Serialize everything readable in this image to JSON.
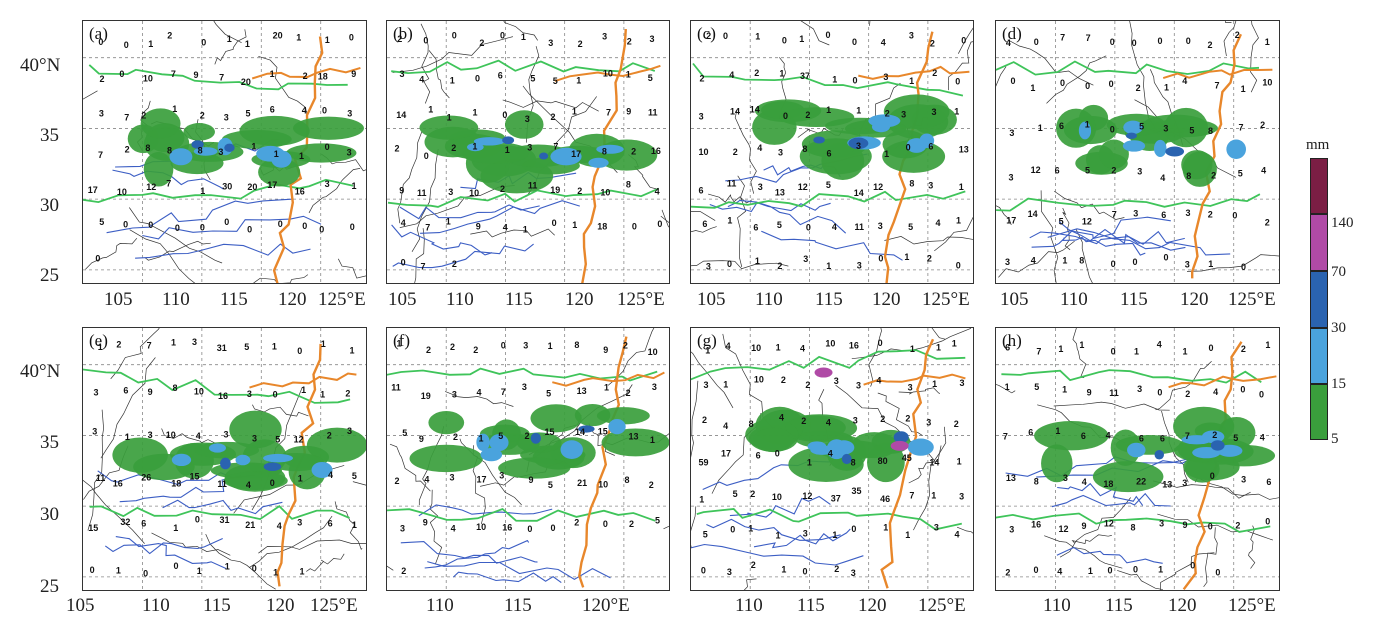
{
  "panels": [
    {
      "label": "(a)",
      "stations": [
        "0",
        "0",
        "1",
        "2",
        "0",
        "1",
        "1",
        "20",
        "1",
        "1",
        "0",
        "2",
        "0",
        "10",
        "7",
        "9",
        "7",
        "20",
        "1",
        "2",
        "18",
        "9",
        "3",
        "7",
        "2",
        "1",
        "2",
        "3",
        "5",
        "6",
        "4",
        "0",
        "3",
        "7",
        "2",
        "8",
        "8",
        "8",
        "3",
        "1",
        "1",
        "1",
        "0",
        "3",
        "17",
        "10",
        "12",
        "7",
        "1",
        "30",
        "20",
        "17",
        "16",
        "3",
        "1",
        "5",
        "0",
        "0",
        "0",
        "0",
        "0",
        "0",
        "0",
        "0",
        "0",
        "0",
        "0"
      ]
    },
    {
      "label": "(b)",
      "stations": [
        "2",
        "0",
        "0",
        "2",
        "0",
        "1",
        "3",
        "2",
        "3",
        "2",
        "3",
        "3",
        "4",
        "1",
        "0",
        "6",
        "5",
        "5",
        "1",
        "10",
        "1",
        "5",
        "14",
        "1",
        "1",
        "1",
        "0",
        "3",
        "2",
        "1",
        "7",
        "9",
        "11",
        "2",
        "0",
        "2",
        "1",
        "1",
        "3",
        "7",
        "17",
        "8",
        "2",
        "16",
        "9",
        "11",
        "3",
        "10",
        "2",
        "11",
        "19",
        "2",
        "10",
        "8",
        "4",
        "4",
        "7",
        "1",
        "9",
        "4",
        "1",
        "0",
        "1",
        "18",
        "0",
        "0",
        "0",
        "7",
        "2"
      ]
    },
    {
      "label": "(c)",
      "stations": [
        "2",
        "0",
        "1",
        "0",
        "1",
        "0",
        "0",
        "4",
        "3",
        "2",
        "0",
        "2",
        "4",
        "2",
        "1",
        "37",
        "1",
        "0",
        "3",
        "1",
        "2",
        "0",
        "3",
        "14",
        "14",
        "0",
        "2",
        "1",
        "1",
        "2",
        "3",
        "3",
        "1",
        "10",
        "2",
        "4",
        "3",
        "8",
        "6",
        "3",
        "1",
        "0",
        "6",
        "13",
        "6",
        "11",
        "3",
        "13",
        "12",
        "5",
        "14",
        "12",
        "8",
        "3",
        "1",
        "6",
        "1",
        "6",
        "5",
        "0",
        "4",
        "11",
        "3",
        "5",
        "4",
        "1",
        "3",
        "0",
        "1",
        "2",
        "3",
        "1",
        "3",
        "0",
        "1",
        "2",
        "0"
      ]
    },
    {
      "label": "(d)",
      "stations": [
        "4",
        "0",
        "7",
        "7",
        "0",
        "0",
        "0",
        "0",
        "2",
        "2",
        "1",
        "0",
        "1",
        "0",
        "0",
        "0",
        "2",
        "1",
        "4",
        "7",
        "1",
        "10",
        "3",
        "1",
        "6",
        "1",
        "0",
        "5",
        "3",
        "5",
        "8",
        "7",
        "2",
        "3",
        "12",
        "6",
        "5",
        "2",
        "3",
        "4",
        "8",
        "2",
        "5",
        "4",
        "17",
        "14",
        "5",
        "12",
        "7",
        "3",
        "6",
        "3",
        "2",
        "0",
        "2",
        "3",
        "4",
        "1",
        "8",
        "0",
        "0",
        "0",
        "3",
        "1",
        "0"
      ]
    },
    {
      "label": "(e)",
      "stations": [
        "1",
        "2",
        "7",
        "1",
        "3",
        "31",
        "5",
        "1",
        "0",
        "1",
        "1",
        "3",
        "6",
        "9",
        "8",
        "10",
        "16",
        "3",
        "0",
        "1",
        "1",
        "2",
        "3",
        "1",
        "3",
        "10",
        "4",
        "3",
        "3",
        "5",
        "12",
        "2",
        "3",
        "11",
        "16",
        "26",
        "18",
        "15",
        "11",
        "4",
        "0",
        "1",
        "4",
        "5",
        "15",
        "32",
        "6",
        "1",
        "0",
        "31",
        "21",
        "4",
        "3",
        "6",
        "1",
        "0",
        "1",
        "0",
        "0",
        "1",
        "1",
        "0",
        "1",
        "1"
      ]
    },
    {
      "label": "(f)",
      "stations": [
        "1",
        "2",
        "2",
        "2",
        "0",
        "3",
        "1",
        "8",
        "9",
        "2",
        "10",
        "11",
        "19",
        "3",
        "4",
        "7",
        "3",
        "5",
        "13",
        "1",
        "2",
        "3",
        "5",
        "9",
        "2",
        "1",
        "5",
        "2",
        "15",
        "14",
        "15",
        "13",
        "1",
        "2",
        "4",
        "3",
        "17",
        "3",
        "9",
        "5",
        "21",
        "10",
        "8",
        "2",
        "3",
        "9",
        "4",
        "10",
        "16",
        "0",
        "0",
        "2",
        "0",
        "2",
        "5",
        "2"
      ]
    },
    {
      "label": "(g)",
      "stations": [
        "1",
        "4",
        "10",
        "1",
        "4",
        "10",
        "16",
        "0",
        "1",
        "1",
        "1",
        "3",
        "1",
        "10",
        "2",
        "2",
        "3",
        "3",
        "4",
        "3",
        "1",
        "3",
        "2",
        "4",
        "8",
        "4",
        "2",
        "4",
        "3",
        "2",
        "2",
        "3",
        "2",
        "59",
        "17",
        "6",
        "0",
        "1",
        "4",
        "8",
        "80",
        "45",
        "14",
        "1",
        "1",
        "5",
        "2",
        "10",
        "12",
        "37",
        "35",
        "46",
        "7",
        "1",
        "3",
        "5",
        "0",
        "1",
        "1",
        "3",
        "1",
        "0",
        "1",
        "1",
        "3",
        "4",
        "0",
        "3",
        "2",
        "1",
        "0",
        "2",
        "3"
      ]
    },
    {
      "label": "(h)",
      "stations": [
        "6",
        "7",
        "1",
        "1",
        "0",
        "1",
        "4",
        "1",
        "0",
        "2",
        "1",
        "1",
        "5",
        "1",
        "9",
        "11",
        "3",
        "0",
        "2",
        "4",
        "0",
        "0",
        "7",
        "6",
        "1",
        "6",
        "4",
        "6",
        "6",
        "7",
        "2",
        "5",
        "4",
        "13",
        "8",
        "3",
        "4",
        "18",
        "22",
        "13",
        "3",
        "0",
        "3",
        "6",
        "3",
        "16",
        "12",
        "9",
        "12",
        "8",
        "3",
        "9",
        "0",
        "2",
        "0",
        "2",
        "0",
        "4",
        "1",
        "0",
        "0",
        "1",
        "0",
        "0"
      ]
    }
  ],
  "lon_ticks_row1": [
    "105",
    "110",
    "115",
    "120",
    "125°E"
  ],
  "lon_ticks_row2_e": [
    "105",
    "110",
    "115",
    "120",
    "125°E"
  ],
  "lon_ticks_row2_f": [
    "110",
    "115",
    "120°E"
  ],
  "lon_ticks_row2_gh": [
    "110",
    "115",
    "120",
    "125°E"
  ],
  "lat_ticks": [
    "40°N",
    "35",
    "30",
    "25"
  ],
  "colorbar": {
    "unit": "mm",
    "ticks": [
      "140",
      "70",
      "30",
      "15",
      "5"
    ],
    "colors": [
      "#7b1e44",
      "#b04aa6",
      "#2a63b0",
      "#4aa3dd",
      "#3a9e3c"
    ]
  },
  "colors": {
    "province_border": "#333333",
    "river_yellow": "#e8872b",
    "contour_green": "#3fc45a",
    "contour_blue": "#3c5ec4",
    "grid": "#888888"
  }
}
